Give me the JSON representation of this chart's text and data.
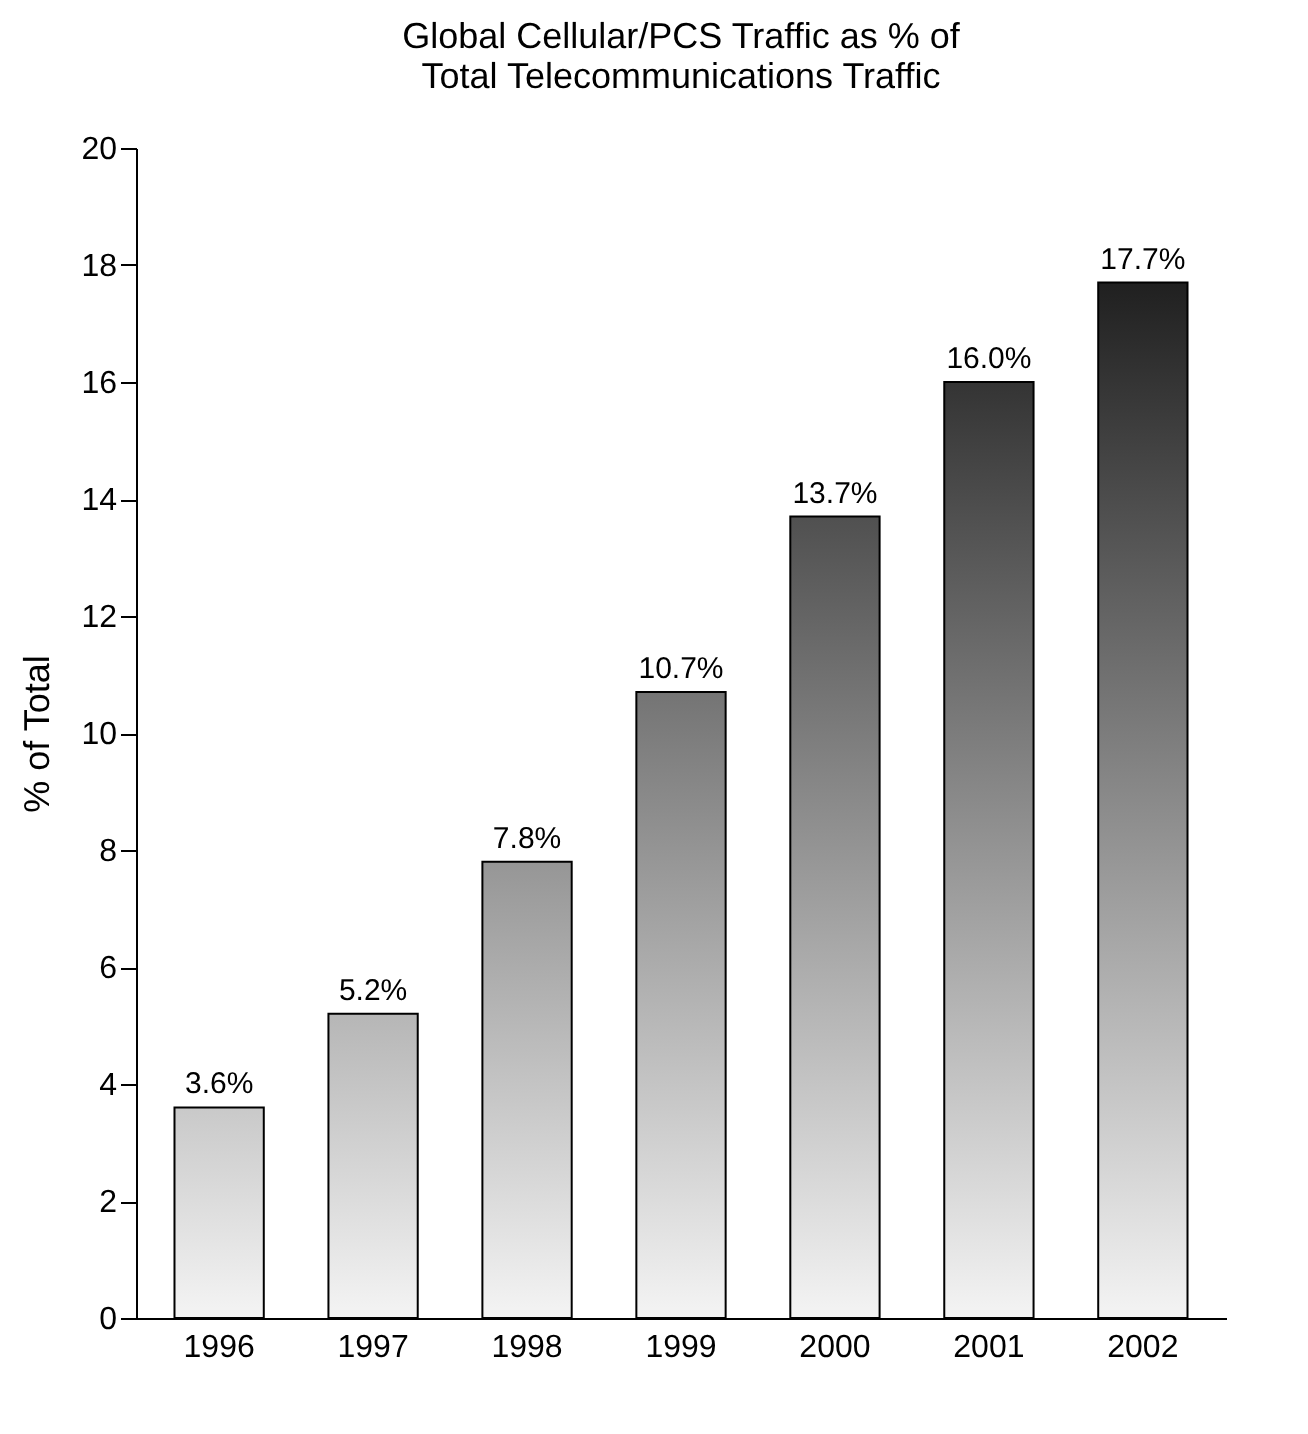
{
  "chart_data": {
    "type": "bar",
    "title": [
      "Global Cellular/PCS Traffic as % of",
      "Total Telecommunications Traffic"
    ],
    "ylabel": "% of Total",
    "categories": [
      "1996",
      "1997",
      "1998",
      "1999",
      "2000",
      "2001",
      "2002"
    ],
    "values": [
      3.6,
      5.2,
      7.8,
      10.7,
      13.7,
      16.0,
      17.7
    ],
    "value_labels": [
      "3.6%",
      "5.2%",
      "7.8%",
      "10.7%",
      "13.7%",
      "16.0%",
      "17.7%"
    ],
    "ylim": [
      0,
      20
    ],
    "yticks": [
      0,
      2,
      4,
      6,
      8,
      10,
      12,
      14,
      16,
      18,
      20
    ],
    "grid": false
  }
}
